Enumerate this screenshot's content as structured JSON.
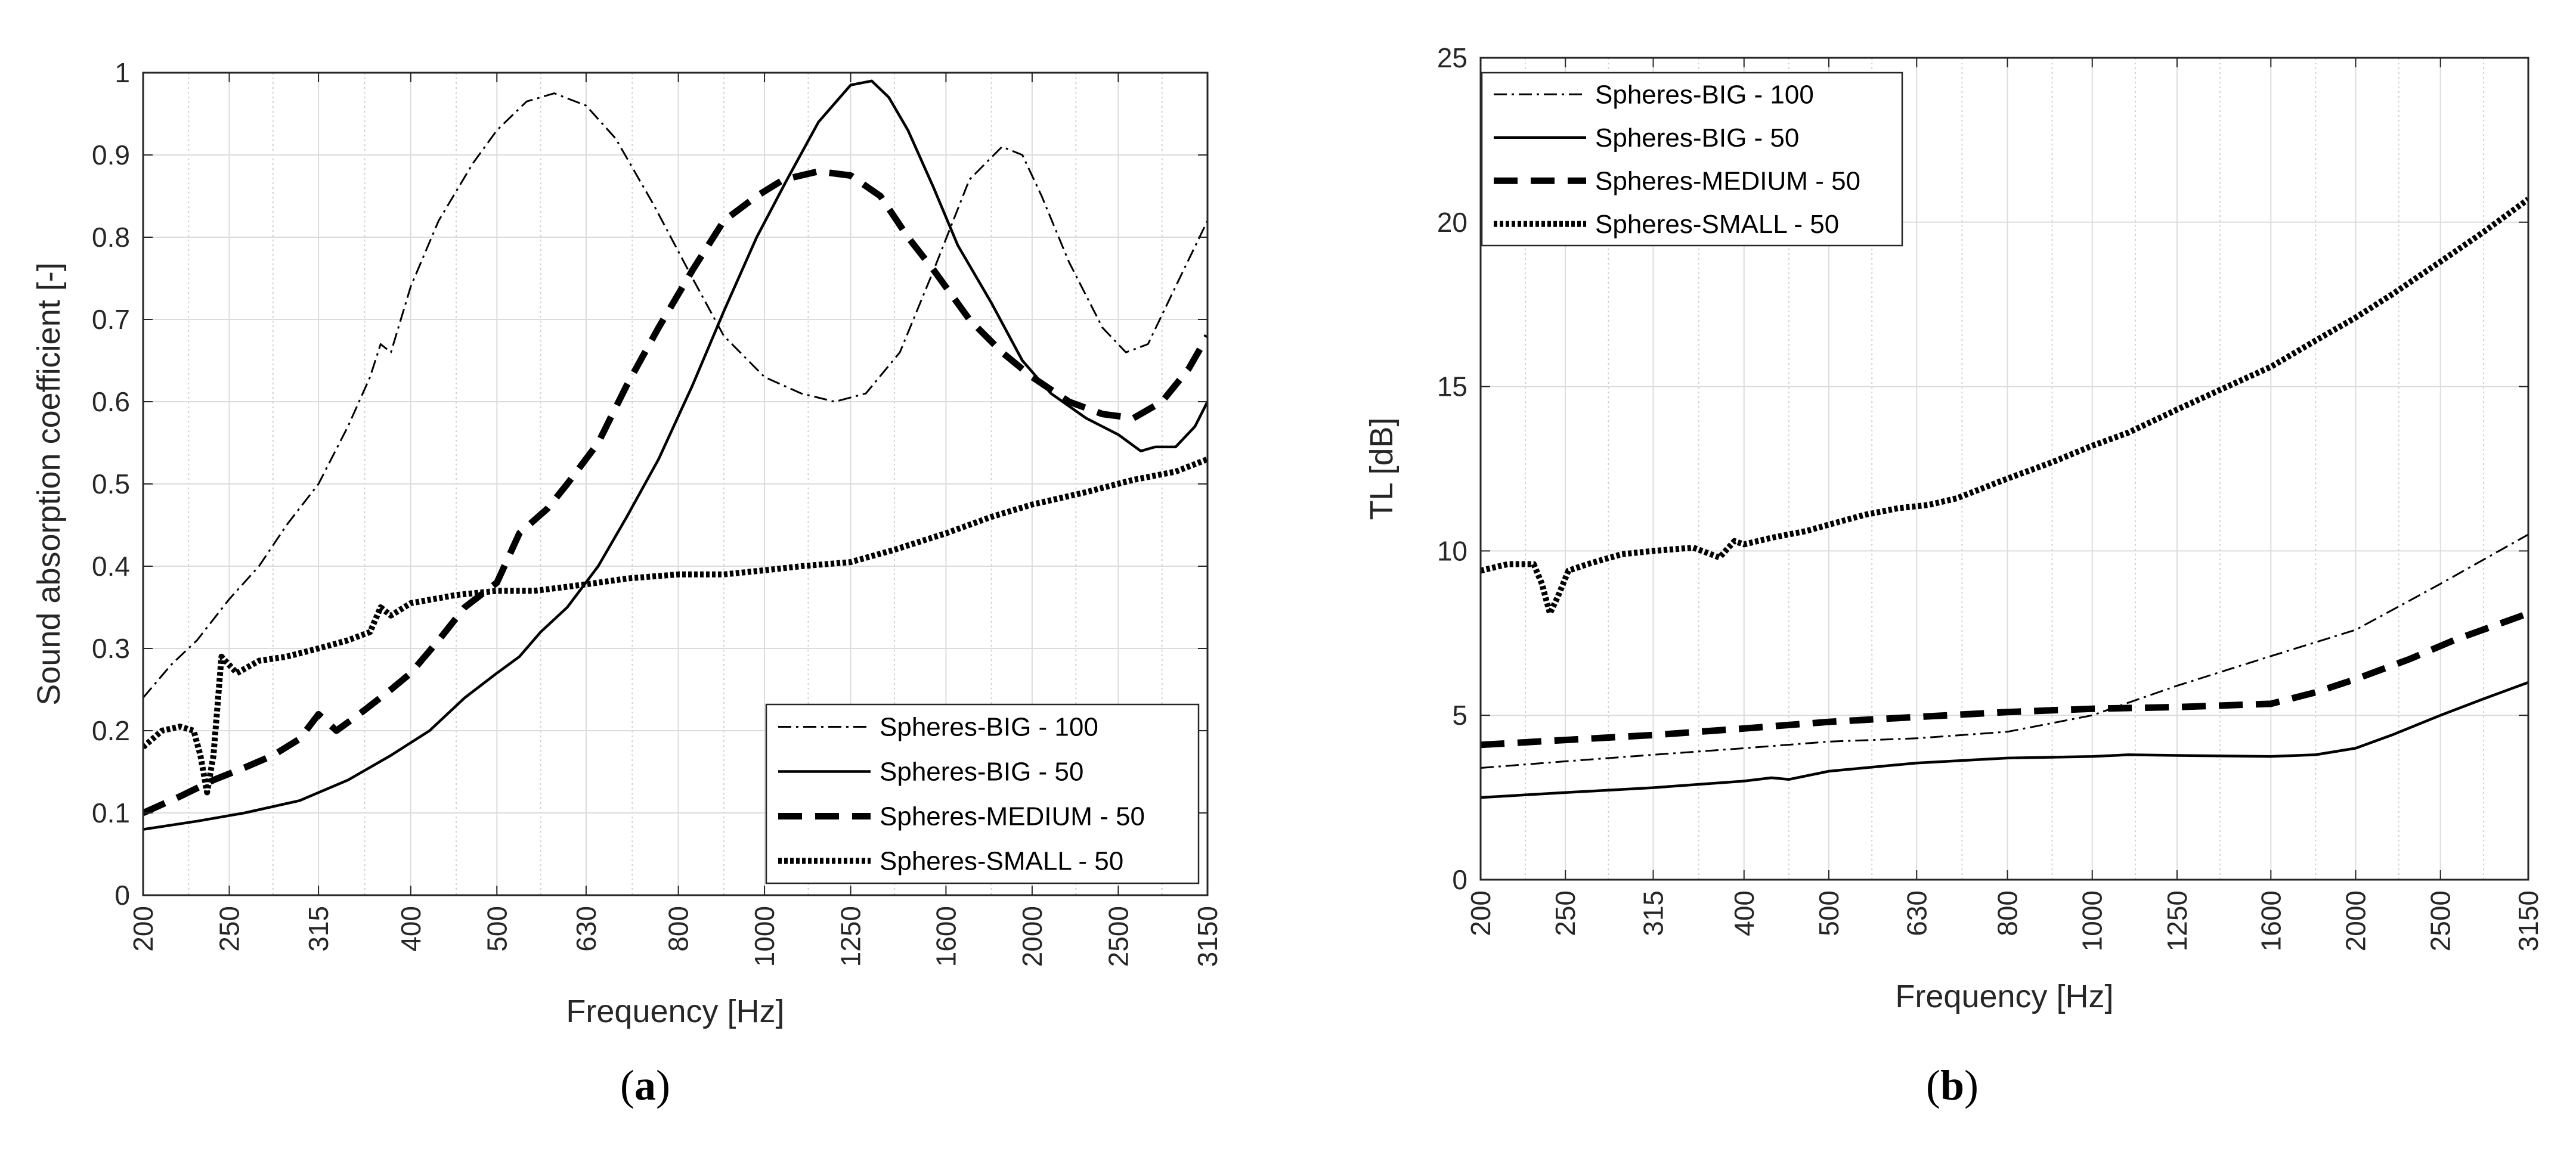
{
  "figure": {
    "panel_labels": [
      "a",
      "b"
    ]
  },
  "chart_data": [
    {
      "type": "line",
      "panel": "a",
      "title": "",
      "xlabel": "Frequency [Hz]",
      "ylabel": "Sound absorption coefficient [-]",
      "x_scale": "log",
      "xlim": [
        200,
        3150
      ],
      "ylim": [
        0,
        1
      ],
      "x_ticks": [
        200,
        250,
        315,
        400,
        500,
        630,
        800,
        1000,
        1250,
        1600,
        2000,
        2500,
        3150
      ],
      "x_tick_labels": [
        "200",
        "250",
        "315",
        "400",
        "500",
        "630",
        "800",
        "1000",
        "1250",
        "1600",
        "2000",
        "2500",
        "3150"
      ],
      "y_ticks": [
        0,
        0.1,
        0.2,
        0.3,
        0.4,
        0.5,
        0.6,
        0.7,
        0.8,
        0.9,
        1
      ],
      "y_tick_labels": [
        "0",
        "0.1",
        "0.2",
        "0.3",
        "0.4",
        "0.5",
        "0.6",
        "0.7",
        "0.8",
        "0.9",
        "1"
      ],
      "grid": true,
      "legend_position": "bottom-right",
      "series": [
        {
          "name": "Spheres-BIG - 100",
          "style": "dashdot",
          "x": [
            200,
            215,
            230,
            250,
            270,
            290,
            315,
            340,
            360,
            370,
            380,
            400,
            430,
            470,
            500,
            540,
            580,
            630,
            680,
            750,
            830,
            900,
            1000,
            1100,
            1200,
            1300,
            1420,
            1550,
            1700,
            1850,
            1950,
            2050,
            2200,
            2400,
            2550,
            2700,
            2900,
            3150
          ],
          "values": [
            0.24,
            0.28,
            0.31,
            0.36,
            0.4,
            0.45,
            0.5,
            0.57,
            0.63,
            0.67,
            0.66,
            0.74,
            0.82,
            0.89,
            0.93,
            0.965,
            0.975,
            0.96,
            0.92,
            0.84,
            0.75,
            0.68,
            0.63,
            0.61,
            0.6,
            0.61,
            0.66,
            0.76,
            0.87,
            0.91,
            0.9,
            0.85,
            0.77,
            0.69,
            0.66,
            0.67,
            0.74,
            0.82
          ]
        },
        {
          "name": "Spheres-BIG - 50",
          "style": "solid",
          "x": [
            200,
            230,
            260,
            300,
            340,
            380,
            420,
            460,
            500,
            530,
            560,
            600,
            650,
            700,
            760,
            830,
            900,
            980,
            1060,
            1150,
            1250,
            1320,
            1380,
            1450,
            1550,
            1650,
            1800,
            1950,
            2100,
            2300,
            2500,
            2650,
            2750,
            2900,
            3050,
            3150
          ],
          "values": [
            0.08,
            0.09,
            0.1,
            0.115,
            0.14,
            0.17,
            0.2,
            0.24,
            0.27,
            0.29,
            0.32,
            0.35,
            0.4,
            0.46,
            0.53,
            0.62,
            0.71,
            0.8,
            0.87,
            0.94,
            0.985,
            0.99,
            0.97,
            0.93,
            0.86,
            0.79,
            0.72,
            0.65,
            0.61,
            0.58,
            0.56,
            0.54,
            0.545,
            0.545,
            0.57,
            0.6
          ]
        },
        {
          "name": "Spheres-MEDIUM - 50",
          "style": "dashed",
          "x": [
            200,
            220,
            240,
            260,
            280,
            300,
            315,
            330,
            350,
            380,
            400,
            430,
            460,
            500,
            530,
            570,
            600,
            650,
            700,
            760,
            830,
            900,
            980,
            1050,
            1150,
            1250,
            1350,
            1450,
            1550,
            1700,
            1850,
            2000,
            2200,
            2400,
            2600,
            2800,
            3000,
            3150
          ],
          "values": [
            0.1,
            0.12,
            0.14,
            0.155,
            0.17,
            0.19,
            0.22,
            0.2,
            0.22,
            0.25,
            0.27,
            0.31,
            0.35,
            0.38,
            0.44,
            0.47,
            0.5,
            0.55,
            0.62,
            0.69,
            0.76,
            0.82,
            0.85,
            0.87,
            0.88,
            0.875,
            0.85,
            0.8,
            0.76,
            0.7,
            0.66,
            0.63,
            0.6,
            0.585,
            0.58,
            0.6,
            0.64,
            0.68
          ]
        },
        {
          "name": "Spheres-SMALL - 50",
          "style": "dotted",
          "x": [
            200,
            210,
            220,
            228,
            232,
            236,
            240,
            245,
            255,
            270,
            290,
            315,
            340,
            360,
            370,
            380,
            400,
            450,
            500,
            550,
            600,
            650,
            700,
            800,
            900,
            1000,
            1100,
            1250,
            1400,
            1600,
            1800,
            2000,
            2300,
            2600,
            2900,
            3150
          ],
          "values": [
            0.18,
            0.2,
            0.205,
            0.2,
            0.17,
            0.125,
            0.17,
            0.29,
            0.27,
            0.285,
            0.29,
            0.3,
            0.31,
            0.32,
            0.35,
            0.34,
            0.355,
            0.365,
            0.37,
            0.37,
            0.375,
            0.38,
            0.385,
            0.39,
            0.39,
            0.395,
            0.4,
            0.405,
            0.42,
            0.44,
            0.46,
            0.475,
            0.49,
            0.505,
            0.515,
            0.53
          ]
        }
      ]
    },
    {
      "type": "line",
      "panel": "b",
      "title": "",
      "xlabel": "Frequency [Hz]",
      "ylabel": "TL [dB]",
      "x_scale": "log",
      "xlim": [
        200,
        3150
      ],
      "ylim": [
        0,
        25
      ],
      "x_ticks": [
        200,
        250,
        315,
        400,
        500,
        630,
        800,
        1000,
        1250,
        1600,
        2000,
        2500,
        3150
      ],
      "x_tick_labels": [
        "200",
        "250",
        "315",
        "400",
        "500",
        "630",
        "800",
        "1000",
        "1250",
        "1600",
        "2000",
        "2500",
        "3150"
      ],
      "y_ticks": [
        0,
        5,
        10,
        15,
        20,
        25
      ],
      "y_tick_labels": [
        "0",
        "5",
        "10",
        "15",
        "20",
        "25"
      ],
      "grid": true,
      "legend_position": "top-left",
      "series": [
        {
          "name": "Spheres-BIG - 100",
          "style": "dashdot",
          "x": [
            200,
            250,
            315,
            400,
            500,
            630,
            800,
            1000,
            1250,
            1600,
            2000,
            2500,
            3150
          ],
          "values": [
            3.4,
            3.6,
            3.8,
            4.0,
            4.2,
            4.3,
            4.5,
            5.0,
            5.9,
            6.8,
            7.6,
            9.0,
            10.5
          ]
        },
        {
          "name": "Spheres-BIG - 50",
          "style": "solid",
          "x": [
            200,
            250,
            315,
            400,
            430,
            450,
            500,
            630,
            800,
            1000,
            1100,
            1250,
            1600,
            1800,
            2000,
            2200,
            2500,
            2800,
            3150
          ],
          "values": [
            2.5,
            2.65,
            2.8,
            3.0,
            3.1,
            3.05,
            3.3,
            3.55,
            3.7,
            3.75,
            3.8,
            3.78,
            3.75,
            3.8,
            4.0,
            4.4,
            5.0,
            5.5,
            6.0
          ]
        },
        {
          "name": "Spheres-MEDIUM - 50",
          "style": "dashed",
          "x": [
            200,
            250,
            315,
            400,
            500,
            630,
            800,
            1000,
            1250,
            1600,
            1800,
            2000,
            2300,
            2600,
            3150
          ],
          "values": [
            4.1,
            4.25,
            4.4,
            4.6,
            4.8,
            4.95,
            5.1,
            5.2,
            5.25,
            5.35,
            5.7,
            6.1,
            6.7,
            7.3,
            8.1
          ]
        },
        {
          "name": "Spheres-SMALL - 50",
          "style": "dotted",
          "x": [
            200,
            215,
            230,
            235,
            240,
            245,
            252,
            265,
            290,
            315,
            350,
            375,
            390,
            400,
            430,
            470,
            500,
            550,
            600,
            650,
            700,
            800,
            900,
            1000,
            1100,
            1250,
            1400,
            1600,
            1800,
            2000,
            2200,
            2500,
            2800,
            3150
          ],
          "values": [
            9.4,
            9.6,
            9.6,
            9.0,
            8.1,
            8.6,
            9.4,
            9.6,
            9.9,
            10.0,
            10.1,
            9.8,
            10.3,
            10.2,
            10.4,
            10.6,
            10.8,
            11.1,
            11.3,
            11.4,
            11.6,
            12.2,
            12.7,
            13.2,
            13.6,
            14.3,
            14.9,
            15.6,
            16.4,
            17.1,
            17.8,
            18.8,
            19.7,
            20.7
          ]
        }
      ]
    }
  ]
}
